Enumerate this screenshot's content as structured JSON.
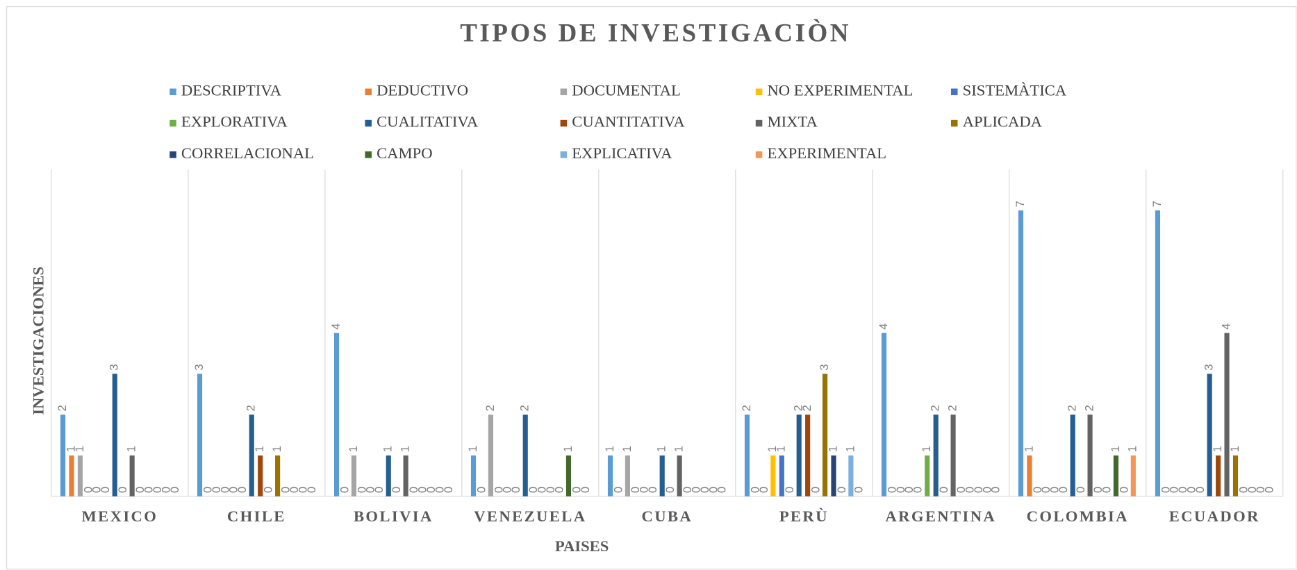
{
  "chart_data": {
    "type": "bar",
    "title": "TIPOS DE INVESTIGACIÒN",
    "x_label": "PAISES",
    "y_label": "INVESTIGACIONES",
    "categories": [
      "MEXICO",
      "CHILE",
      "BOLIVIA",
      "VENEZUELA",
      "CUBA",
      "PERÙ",
      "ARGENTINA",
      "COLOMBIA",
      "ECUADOR"
    ],
    "ylim": [
      0,
      8
    ],
    "legend": "top",
    "series": [
      {
        "name": "DESCRIPTIVA",
        "color": "#5b9bd5",
        "values": [
          2,
          3,
          4,
          1,
          1,
          2,
          4,
          7,
          7
        ]
      },
      {
        "name": "DEDUCTIVO",
        "color": "#ed7d31",
        "values": [
          1,
          0,
          0,
          0,
          0,
          0,
          0,
          1,
          0
        ]
      },
      {
        "name": "DOCUMENTAL",
        "color": "#a5a5a5",
        "values": [
          1,
          0,
          1,
          2,
          1,
          0,
          0,
          0,
          0
        ]
      },
      {
        "name": "NO EXPERIMENTAL",
        "color": "#ffc000",
        "values": [
          0,
          0,
          0,
          0,
          0,
          1,
          0,
          0,
          0
        ]
      },
      {
        "name": "SISTEMÀTICA",
        "color": "#4472c4",
        "values": [
          0,
          0,
          0,
          0,
          0,
          1,
          0,
          0,
          0
        ]
      },
      {
        "name": "EXPLORATIVA",
        "color": "#70ad47",
        "values": [
          0,
          0,
          0,
          0,
          0,
          0,
          1,
          0,
          0
        ]
      },
      {
        "name": "CUALITATIVA",
        "color": "#255e91",
        "values": [
          3,
          2,
          1,
          2,
          1,
          2,
          2,
          2,
          3
        ]
      },
      {
        "name": "CUANTITATIVA",
        "color": "#9e480e",
        "values": [
          0,
          1,
          0,
          0,
          0,
          2,
          0,
          0,
          1
        ]
      },
      {
        "name": "MIXTA",
        "color": "#636363",
        "values": [
          1,
          0,
          1,
          0,
          1,
          0,
          2,
          2,
          4
        ]
      },
      {
        "name": "APLICADA",
        "color": "#997300",
        "values": [
          0,
          1,
          0,
          0,
          0,
          3,
          0,
          0,
          1
        ]
      },
      {
        "name": "CORRELACIONAL",
        "color": "#264478",
        "values": [
          0,
          0,
          0,
          0,
          0,
          1,
          0,
          0,
          0
        ]
      },
      {
        "name": "CAMPO",
        "color": "#43682b",
        "values": [
          0,
          0,
          0,
          1,
          0,
          0,
          0,
          1,
          0
        ]
      },
      {
        "name": "EXPLICATIVA",
        "color": "#7cafdd",
        "values": [
          0,
          0,
          0,
          0,
          0,
          1,
          0,
          0,
          0
        ]
      },
      {
        "name": "EXPERIMENTAL",
        "color": "#f1975a",
        "values": [
          0,
          0,
          0,
          0,
          0,
          0,
          0,
          1,
          0
        ]
      }
    ]
  }
}
